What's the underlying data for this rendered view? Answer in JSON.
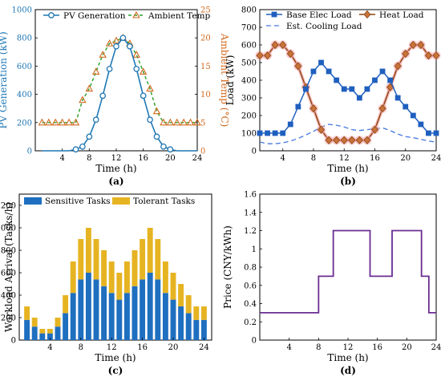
{
  "colors": {
    "pv": "#1f77b4",
    "temp": "#d2691e",
    "temp_dash": "#2ca02c",
    "base_load": "#1f5fbf",
    "heat_load": "#8b4513",
    "heat_glow": "#f4a6a6",
    "cooling": "#4477dd",
    "sensitive": "#1f6fc0",
    "tolerant": "#e6b422",
    "price": "#6a2c91",
    "temp_axis": "#d2691e"
  },
  "chart_data": [
    {
      "id": "a",
      "type": "line",
      "panel_label": "(a)",
      "xlabel": "Time (h)",
      "ylabel": "PV Generation (kW)",
      "y2label": "Ambient Temp (°C)",
      "xlim": [
        0,
        24
      ],
      "ylim": [
        0,
        1000
      ],
      "y2lim": [
        0,
        25
      ],
      "xticks": [
        "4",
        "8",
        "12",
        "16",
        "20",
        "24"
      ],
      "yticks": [
        "0",
        "200",
        "400",
        "600",
        "800",
        "1000"
      ],
      "y2ticks": [
        "0",
        "5",
        "10",
        "15",
        "20",
        "25"
      ],
      "legend": [
        "PV Generation",
        "Ambient Temp"
      ],
      "series": [
        {
          "name": "PV Generation",
          "axis": "left",
          "x": [
            1,
            2,
            3,
            4,
            5,
            6,
            7,
            8,
            9,
            10,
            11,
            12,
            13,
            14,
            15,
            16,
            17,
            18,
            19,
            20,
            21,
            22,
            23,
            24
          ],
          "values": [
            0,
            0,
            0,
            0,
            0,
            10,
            30,
            100,
            220,
            390,
            580,
            740,
            800,
            740,
            580,
            390,
            220,
            100,
            30,
            10,
            0,
            0,
            0,
            0
          ]
        },
        {
          "name": "Ambient Temp",
          "axis": "right",
          "x": [
            1,
            2,
            3,
            4,
            5,
            6,
            7,
            8,
            9,
            10,
            11,
            12,
            13,
            14,
            15,
            16,
            17,
            18,
            19,
            20,
            21,
            22,
            23,
            24
          ],
          "values": [
            5,
            5,
            5,
            5,
            5,
            5,
            9,
            11,
            14,
            17,
            19,
            19.5,
            20,
            19,
            17,
            14,
            11,
            7,
            5,
            5,
            5,
            5,
            5,
            5
          ]
        }
      ]
    },
    {
      "id": "b",
      "type": "line",
      "panel_label": "(b)",
      "xlabel": "Time (h)",
      "ylabel": "Load (kW)",
      "xlim": [
        1,
        24
      ],
      "ylim": [
        0,
        800
      ],
      "xticks": [
        "4",
        "8",
        "12",
        "16",
        "20",
        "24"
      ],
      "yticks": [
        "0",
        "100",
        "200",
        "300",
        "400",
        "500",
        "600",
        "700",
        "800"
      ],
      "legend": [
        "Base Elec Load",
        "Heat Load",
        "Est. Cooling Load"
      ],
      "series": [
        {
          "name": "Base Elec Load",
          "x": [
            1,
            2,
            3,
            4,
            5,
            6,
            7,
            8,
            9,
            10,
            11,
            12,
            13,
            14,
            15,
            16,
            17,
            18,
            19,
            20,
            21,
            22,
            23,
            24
          ],
          "values": [
            100,
            100,
            100,
            100,
            150,
            250,
            350,
            450,
            500,
            450,
            400,
            350,
            350,
            300,
            350,
            400,
            450,
            400,
            300,
            250,
            200,
            150,
            100,
            100
          ]
        },
        {
          "name": "Heat Load",
          "x": [
            1,
            2,
            3,
            4,
            5,
            6,
            7,
            8,
            9,
            10,
            11,
            12,
            13,
            14,
            15,
            16,
            17,
            18,
            19,
            20,
            21,
            22,
            23,
            24
          ],
          "values": [
            540,
            540,
            600,
            600,
            550,
            480,
            360,
            240,
            120,
            60,
            60,
            60,
            60,
            60,
            60,
            120,
            240,
            360,
            480,
            550,
            600,
            600,
            540,
            540
          ]
        },
        {
          "name": "Est. Cooling Load",
          "x": [
            1,
            2,
            3,
            4,
            5,
            6,
            7,
            8,
            9,
            10,
            11,
            12,
            13,
            14,
            15,
            16,
            17,
            18,
            19,
            20,
            21,
            22,
            23,
            24
          ],
          "values": [
            50,
            40,
            40,
            45,
            55,
            70,
            90,
            110,
            135,
            150,
            145,
            135,
            120,
            115,
            120,
            125,
            130,
            115,
            95,
            80,
            75,
            65,
            55,
            50
          ]
        }
      ]
    },
    {
      "id": "c",
      "type": "bar",
      "stacked": true,
      "panel_label": "(c)",
      "xlabel": "Time (h)",
      "ylabel": "Workload Arrival (Tasks/h)",
      "xlim": [
        0,
        25
      ],
      "ylim": [
        0,
        1300
      ],
      "xticks": [
        "4",
        "8",
        "12",
        "16",
        "20",
        "24"
      ],
      "yticks": [
        "0",
        "200",
        "400",
        "600",
        "800",
        "1000",
        "1200"
      ],
      "legend": [
        "Sensitive Tasks",
        "Tolerant Tasks"
      ],
      "categories": [
        1,
        2,
        3,
        4,
        5,
        6,
        7,
        8,
        9,
        10,
        11,
        12,
        13,
        14,
        15,
        16,
        17,
        18,
        19,
        20,
        21,
        22,
        23,
        24
      ],
      "series": [
        {
          "name": "Sensitive Tasks",
          "values": [
            180,
            120,
            60,
            60,
            120,
            240,
            420,
            540,
            600,
            540,
            480,
            420,
            360,
            420,
            480,
            540,
            600,
            540,
            420,
            360,
            300,
            240,
            180,
            180
          ]
        },
        {
          "name": "Tolerant Tasks",
          "values": [
            120,
            80,
            40,
            40,
            80,
            160,
            280,
            360,
            400,
            360,
            320,
            280,
            240,
            280,
            320,
            360,
            400,
            360,
            280,
            240,
            200,
            160,
            120,
            120
          ]
        }
      ]
    },
    {
      "id": "d",
      "type": "line",
      "step": true,
      "panel_label": "(d)",
      "xlabel": "Time (h)",
      "ylabel": "Price (CNY/kWh)",
      "xlim": [
        0,
        24
      ],
      "ylim": [
        0,
        1.6
      ],
      "xticks": [
        "4",
        "8",
        "12",
        "16",
        "20",
        "24"
      ],
      "yticks": [
        "0",
        "0.2",
        "0.4",
        "0.6",
        "0.8",
        "1",
        "1.2",
        "1.4",
        "1.6"
      ],
      "x": [
        0,
        8,
        8,
        10,
        10,
        15,
        15,
        18,
        18,
        22,
        22,
        23,
        23,
        24
      ],
      "values": [
        0.3,
        0.3,
        0.7,
        0.7,
        1.2,
        1.2,
        0.7,
        0.7,
        1.2,
        1.2,
        0.7,
        0.7,
        0.3,
        0.3
      ]
    }
  ]
}
